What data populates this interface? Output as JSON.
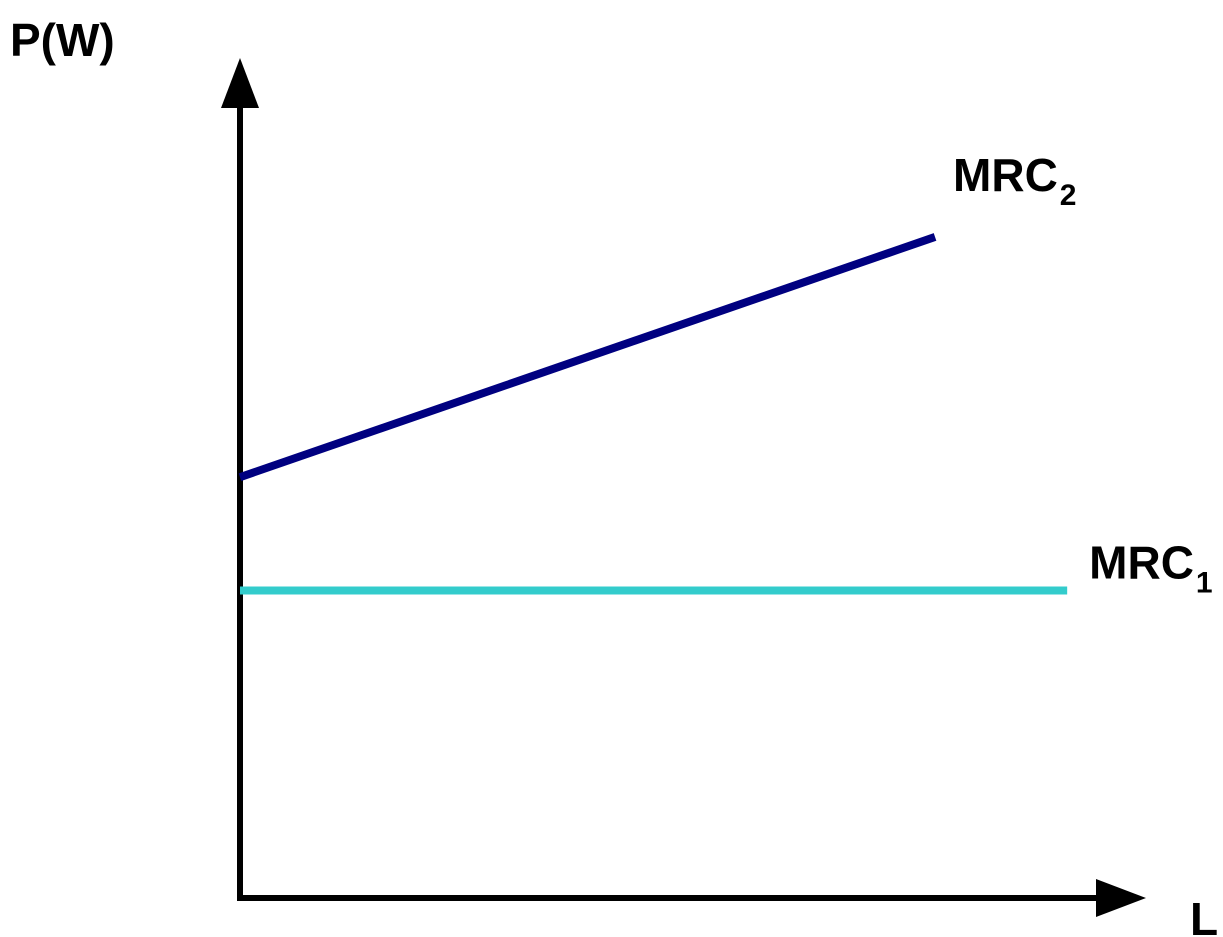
{
  "chart_data": {
    "type": "line",
    "ylabel": "P(W)",
    "xlabel": "L",
    "grid": false,
    "legend": "none",
    "xlim": [
      0,
      1
    ],
    "ylim": [
      0,
      1
    ],
    "series": [
      {
        "name": "MRC",
        "subscript": "2",
        "color": "#000080",
        "x": [
          0,
          0.768
        ],
        "y": [
          0.501,
          0.787
        ]
      },
      {
        "name": "MRC",
        "subscript": "1",
        "color": "#33CCCC",
        "x": [
          0,
          0.914
        ],
        "y": [
          0.366,
          0.366
        ]
      }
    ]
  }
}
